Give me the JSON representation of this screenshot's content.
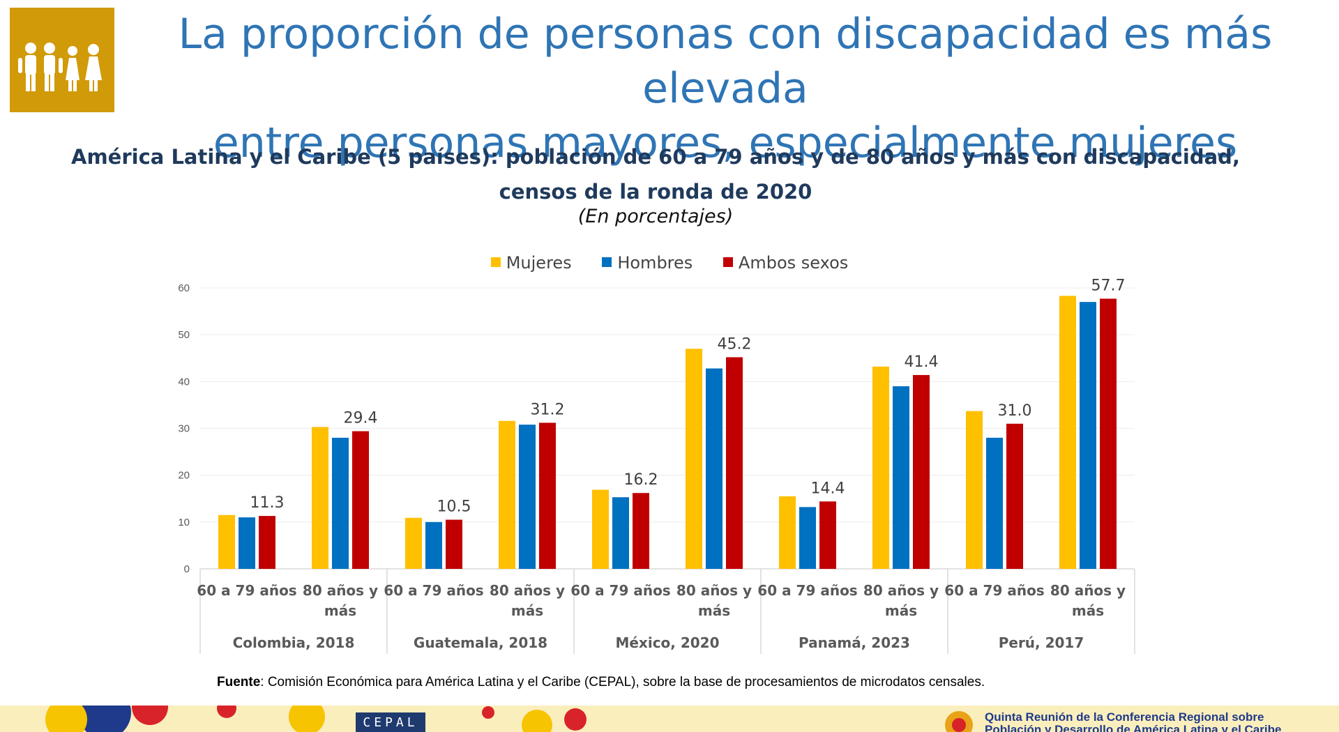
{
  "header": {
    "title_line1": "La proporción de personas con discapacidad es más elevada",
    "title_line2": "entre personas mayores, especialmente mujeres",
    "logo_icon": "people-group-icon"
  },
  "chart_data": {
    "type": "bar",
    "title_line1": "América Latina y el Caribe (5 países): población de 60 a 79 años y de 80 años y más con discapacidad,",
    "title_line2": "censos de la ronda de 2020",
    "units": "(En porcentajes)",
    "legend_position": "top",
    "grid": true,
    "ylim": [
      0,
      60
    ],
    "yticks": [
      "0",
      "10",
      "20",
      "30",
      "40",
      "50",
      "60"
    ],
    "groups": [
      {
        "label": "Colombia, 2018",
        "categories": [
          {
            "line1": "60 a 79 años",
            "line2": ""
          },
          {
            "line1": "80 años y",
            "line2": "más"
          }
        ]
      },
      {
        "label": "Guatemala, 2018",
        "categories": [
          {
            "line1": "60 a 79 años",
            "line2": ""
          },
          {
            "line1": "80 años y",
            "line2": "más"
          }
        ]
      },
      {
        "label": "México, 2020",
        "categories": [
          {
            "line1": "60 a 79 años",
            "line2": ""
          },
          {
            "line1": "80 años y",
            "line2": "más"
          }
        ]
      },
      {
        "label": "Panamá, 2023",
        "categories": [
          {
            "line1": "60 a 79 años",
            "line2": ""
          },
          {
            "line1": "80 años y",
            "line2": "más"
          }
        ]
      },
      {
        "label": "Perú, 2017",
        "categories": [
          {
            "line1": "60 a 79 años",
            "line2": ""
          },
          {
            "line1": "80 años y",
            "line2": "más"
          }
        ]
      }
    ],
    "series": [
      {
        "name": "Mujeres",
        "color": "#ffc000",
        "values": [
          11.5,
          30.3,
          10.9,
          31.6,
          16.9,
          47.0,
          15.5,
          43.2,
          33.7,
          58.3
        ]
      },
      {
        "name": "Hombres",
        "color": "#0070c0",
        "values": [
          11.0,
          28.0,
          10.0,
          30.8,
          15.3,
          42.8,
          13.2,
          39.0,
          28.0,
          57.0
        ]
      },
      {
        "name": "Ambos sexos",
        "color": "#c00000",
        "values": [
          11.3,
          29.4,
          10.5,
          31.2,
          16.2,
          45.2,
          14.4,
          41.4,
          31.0,
          57.7
        ],
        "labels": [
          "11.3",
          "29.4",
          "10.5",
          "31.2",
          "16.2",
          "45.2",
          "14.4",
          "41.4",
          "31.0",
          "57.7"
        ]
      }
    ]
  },
  "source": {
    "label": "Fuente",
    "text": ": Comisión Económica para América Latina y el Caribe (CEPAL), sobre la base de procesamientos de microdatos censales."
  },
  "footer": {
    "cepal_logo": "CEPAL",
    "conference_line1": "Quinta Reunión de la Conferencia Regional sobre",
    "conference_line2": "Población y Desarrollo de América Latina y el Caribe"
  }
}
